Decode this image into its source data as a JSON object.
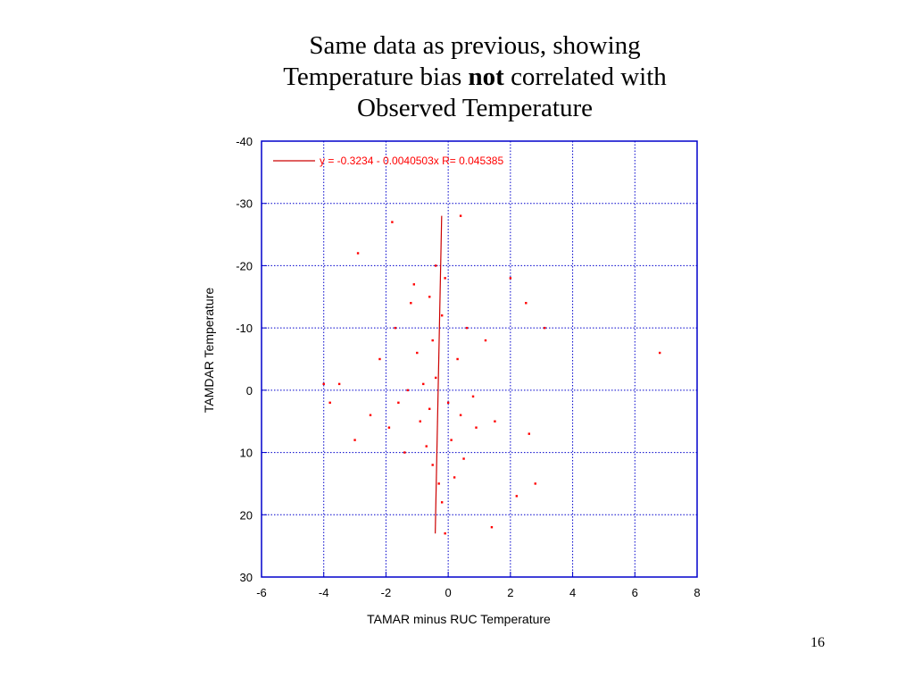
{
  "slide": {
    "title_line1": "Same data as previous, showing",
    "title_line2_pre": "Temperature bias ",
    "title_line2_bold": "not",
    "title_line2_post": " correlated with",
    "title_line3": "Observed Temperature",
    "page_number": "16"
  },
  "colors": {
    "points": "#ff0000",
    "fit_line": "#cc0000",
    "axes_frame": "#0000cc",
    "grid": "#0000cc"
  },
  "chart_data": {
    "type": "scatter",
    "xlabel": "TAMAR minus RUC Temperature",
    "ylabel": "TAMDAR Temperature",
    "xlim": [
      -6,
      8
    ],
    "ylim": [
      -40,
      30
    ],
    "y_inverted": true,
    "x_ticks": [
      "-6",
      "-4",
      "-2",
      "0",
      "2",
      "4",
      "6",
      "8"
    ],
    "y_ticks": [
      "-40",
      "-30",
      "-20",
      "-10",
      "0",
      "10",
      "20",
      "30"
    ],
    "grid": true,
    "legend_position": "top-left",
    "fit": {
      "label": "y = -0.3234 - 0.0040503x   R= 0.045385",
      "intercept": -0.3234,
      "slope": -0.0040503,
      "R": 0.045385
    },
    "series": [
      {
        "points_estimated": [
          [
            -0.4,
            -2
          ],
          [
            -0.6,
            3
          ],
          [
            -0.2,
            -12
          ],
          [
            -0.9,
            5
          ],
          [
            0.1,
            8
          ],
          [
            -1.2,
            -14
          ],
          [
            -0.5,
            12
          ],
          [
            0.3,
            -5
          ],
          [
            -1.6,
            2
          ],
          [
            -0.3,
            15
          ],
          [
            0.6,
            -10
          ],
          [
            -1.0,
            -6
          ],
          [
            -0.7,
            9
          ],
          [
            0.4,
            4
          ],
          [
            -0.1,
            -18
          ],
          [
            -1.4,
            10
          ],
          [
            -0.8,
            -1
          ],
          [
            0.2,
            14
          ],
          [
            -0.5,
            -8
          ],
          [
            0.8,
            1
          ],
          [
            -1.9,
            6
          ],
          [
            -0.2,
            18
          ],
          [
            -1.1,
            -17
          ],
          [
            0.5,
            11
          ],
          [
            -0.6,
            -15
          ],
          [
            0.9,
            6
          ],
          [
            -1.3,
            0
          ],
          [
            -0.4,
            -20
          ],
          [
            0.0,
            2
          ],
          [
            -2.5,
            4
          ],
          [
            -3.5,
            -1
          ],
          [
            -3.0,
            8
          ],
          [
            1.2,
            -8
          ],
          [
            1.5,
            5
          ],
          [
            -1.7,
            -10
          ],
          [
            -2.2,
            -5
          ],
          [
            2.0,
            -18
          ],
          [
            2.2,
            17
          ],
          [
            6.8,
            -6
          ],
          [
            -4.0,
            -1
          ],
          [
            2.6,
            7
          ],
          [
            2.8,
            15
          ],
          [
            -2.9,
            -22
          ],
          [
            -1.8,
            -27
          ],
          [
            1.4,
            22
          ],
          [
            -0.1,
            23
          ],
          [
            0.4,
            -28
          ],
          [
            -3.8,
            2
          ],
          [
            3.1,
            -10
          ],
          [
            2.5,
            -14
          ]
        ]
      }
    ]
  }
}
